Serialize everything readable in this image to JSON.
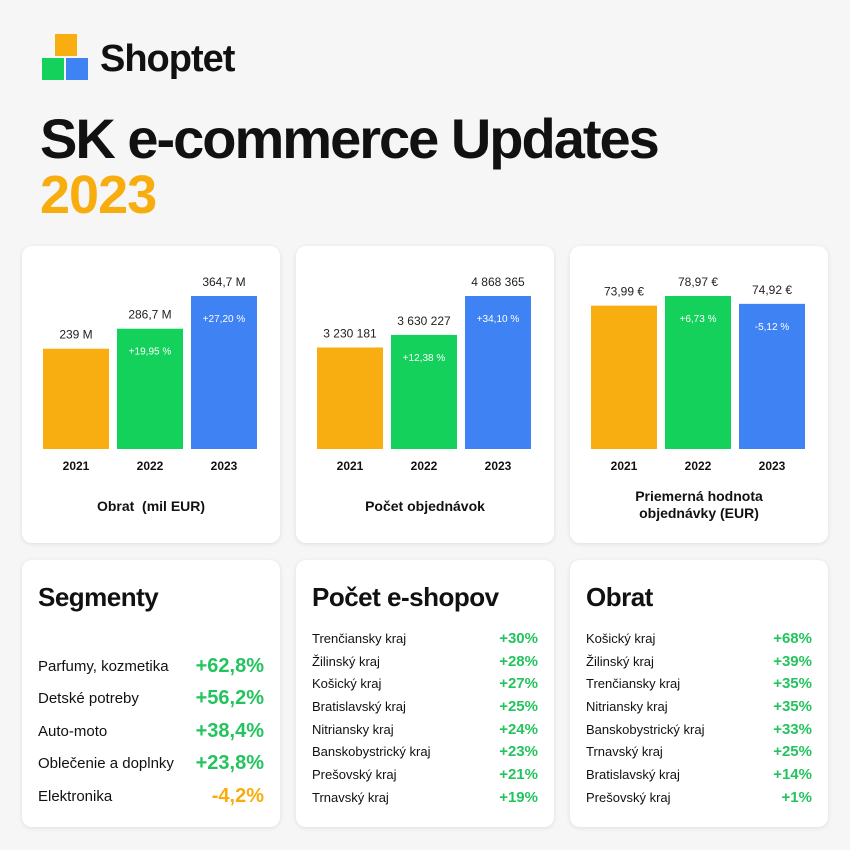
{
  "brand": {
    "name": "Shoptet",
    "logo_colors": {
      "orange": "#f8ad10",
      "green": "#14d15b",
      "blue": "#3f82f3"
    }
  },
  "header": {
    "title": "SK e-commerce Updates",
    "year": "2023",
    "year_color": "#f7ad0d"
  },
  "colors": {
    "y2021": "#f8ad10",
    "y2022": "#14d15b",
    "y2023": "#3f82f3"
  },
  "chart_data": [
    {
      "type": "bar",
      "title": "Obrat  (mil EUR)",
      "categories": [
        "2021",
        "2022",
        "2023"
      ],
      "values": [
        239,
        286.7,
        364.7
      ],
      "value_labels": [
        "239 M",
        "286,7 M",
        "364,7 M"
      ],
      "change_labels": [
        "",
        "+19,95 %",
        "+27,20 %"
      ],
      "ylim": [
        0,
        364.7
      ]
    },
    {
      "type": "bar",
      "title": "Počet objednávok",
      "categories": [
        "2021",
        "2022",
        "2023"
      ],
      "values": [
        3230181,
        3630227,
        4868365
      ],
      "value_labels": [
        "3 230 181",
        "3 630 227",
        "4 868 365"
      ],
      "change_labels": [
        "",
        "+12,38 %",
        "+34,10 %"
      ],
      "ylim": [
        0,
        4868365
      ]
    },
    {
      "type": "bar",
      "title": "Priemerná hodnota objednávky (EUR)",
      "title_lines": [
        "Priemerná hodnota",
        "objednávky (EUR)"
      ],
      "categories": [
        "2021",
        "2022",
        "2023"
      ],
      "values": [
        73.99,
        78.97,
        74.92
      ],
      "value_labels": [
        "73,99 €",
        "78,97 €",
        "74,92 €"
      ],
      "change_labels": [
        "",
        "+6,73 %",
        "-5,12 %"
      ],
      "ylim": [
        0,
        78.97
      ]
    }
  ],
  "segmenty": {
    "title": "Segmenty",
    "rows": [
      {
        "label": "Parfumy, kozmetika",
        "value": "+62,8%",
        "sign": "pos"
      },
      {
        "label": "Detské potreby",
        "value": "+56,2%",
        "sign": "pos"
      },
      {
        "label": "Auto-moto",
        "value": "+38,4%",
        "sign": "pos"
      },
      {
        "label": "Oblečenie a doplnky",
        "value": "+23,8%",
        "sign": "pos"
      },
      {
        "label": "Elektronika",
        "value": "-4,2%",
        "sign": "neg"
      }
    ]
  },
  "eshopy": {
    "title": "Počet e-shopov",
    "rows": [
      {
        "label": "Trenčiansky kraj",
        "value": "+30%"
      },
      {
        "label": "Žilinský kraj",
        "value": "+28%"
      },
      {
        "label": "Košický kraj",
        "value": "+27%"
      },
      {
        "label": "Bratislavský kraj",
        "value": "+25%"
      },
      {
        "label": "Nitriansky kraj",
        "value": "+24%"
      },
      {
        "label": "Banskobystrický kraj",
        "value": "+23%"
      },
      {
        "label": "Prešovský kraj",
        "value": "+21%"
      },
      {
        "label": "Trnavský kraj",
        "value": "+19%"
      }
    ]
  },
  "obrat": {
    "title": "Obrat",
    "rows": [
      {
        "label": "Košický kraj",
        "value": "+68%"
      },
      {
        "label": "Žilinský kraj",
        "value": "+39%"
      },
      {
        "label": "Trenčiansky kraj",
        "value": "+35%"
      },
      {
        "label": "Nitriansky kraj",
        "value": "+35%"
      },
      {
        "label": "Banskobystrický kraj",
        "value": "+33%"
      },
      {
        "label": "Trnavský kraj",
        "value": "+25%"
      },
      {
        "label": "Bratislavský kraj",
        "value": "+14%"
      },
      {
        "label": "Prešovský kraj",
        "value": "+1%"
      }
    ]
  }
}
